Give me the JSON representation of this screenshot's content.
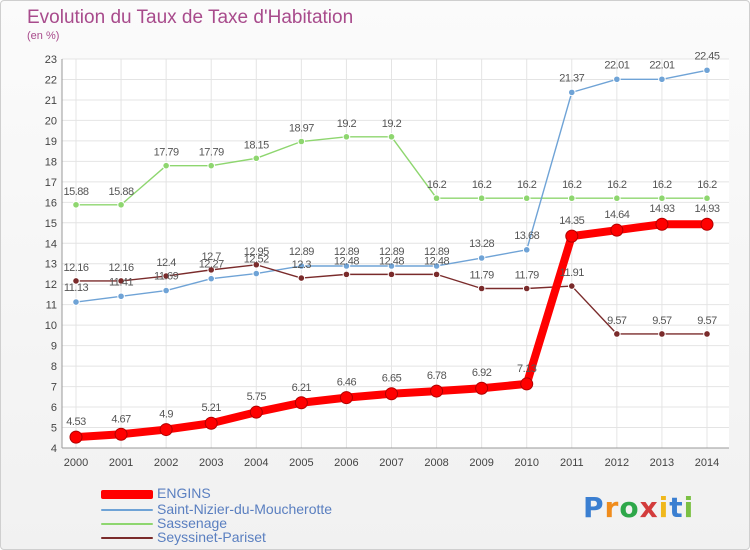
{
  "chart_data": {
    "type": "line",
    "title": "Evolution du Taux de Taxe d'Habitation",
    "unit_label": "(en %)",
    "x": [
      "2000",
      "2001",
      "2002",
      "2003",
      "2004",
      "2005",
      "2006",
      "2007",
      "2008",
      "2009",
      "2010",
      "2011",
      "2012",
      "2013",
      "2014"
    ],
    "ylim": [
      4,
      23
    ],
    "yticks": [
      "4",
      "5",
      "6",
      "7",
      "8",
      "9",
      "10",
      "11",
      "12",
      "13",
      "14",
      "15",
      "16",
      "17",
      "18",
      "19",
      "20",
      "21",
      "22",
      "23"
    ],
    "series": [
      {
        "name": "ENGINS",
        "color": "#ff0000",
        "values": [
          4.53,
          4.67,
          4.9,
          5.21,
          5.75,
          6.21,
          6.46,
          6.65,
          6.78,
          6.92,
          7.13,
          14.35,
          14.64,
          14.93,
          14.93
        ],
        "labels": [
          "4.53",
          "4.67",
          "4.9",
          "5.21",
          "5.75",
          "6.21",
          "6.46",
          "6.65",
          "6.78",
          "6.92",
          "7.13",
          "14.35",
          "14.64",
          "14.93",
          "14.93"
        ]
      },
      {
        "name": "Saint-Nizier-du-Moucherotte",
        "color": "#6fa3d6",
        "values": [
          11.13,
          11.41,
          11.69,
          12.27,
          12.52,
          12.89,
          12.89,
          12.89,
          12.89,
          13.28,
          13.68,
          21.37,
          22.01,
          22.01,
          22.45
        ],
        "labels": [
          "11.13",
          "11.41",
          "11.69",
          "12.27",
          "12.52",
          "12.89",
          "12.89",
          "12.89",
          "12.89",
          "13.28",
          "13.68",
          "21.37",
          "22.01",
          "22.01",
          "22.45"
        ]
      },
      {
        "name": "Sassenage",
        "color": "#8ed66f",
        "values": [
          15.88,
          15.88,
          17.79,
          17.79,
          18.15,
          18.97,
          19.2,
          19.2,
          16.2,
          16.2,
          16.2,
          16.2,
          16.2,
          16.2,
          16.2
        ],
        "labels": [
          "15.88",
          "15.88",
          "17.79",
          "17.79",
          "18.15",
          "18.97",
          "19.2",
          "19.2",
          "16.2",
          "16.2",
          "16.2",
          "16.2",
          "16.2",
          "16.2",
          "16.2"
        ]
      },
      {
        "name": "Seyssinet-Pariset",
        "color": "#7a2b2b",
        "values": [
          12.16,
          12.16,
          12.4,
          12.7,
          12.95,
          12.3,
          12.48,
          12.48,
          12.48,
          11.79,
          11.79,
          11.91,
          9.57,
          9.57,
          9.57
        ],
        "labels": [
          "12.16",
          "12.16",
          "12.4",
          "12.7",
          "12.95",
          "12.3",
          "12.48",
          "12.48",
          "12.48",
          "11.79",
          "11.79",
          "11.91",
          "9.57",
          "9.57",
          "9.57"
        ]
      }
    ],
    "grid": true
  },
  "logo": {
    "letters": [
      "P",
      "r",
      "o",
      "x",
      "i",
      "t",
      "i"
    ],
    "colors": [
      "#3b7fd1",
      "#f08c1c",
      "#2ea84a",
      "#d33c3c",
      "#f0b81c",
      "#3b7fd1",
      "#7bc043"
    ]
  }
}
